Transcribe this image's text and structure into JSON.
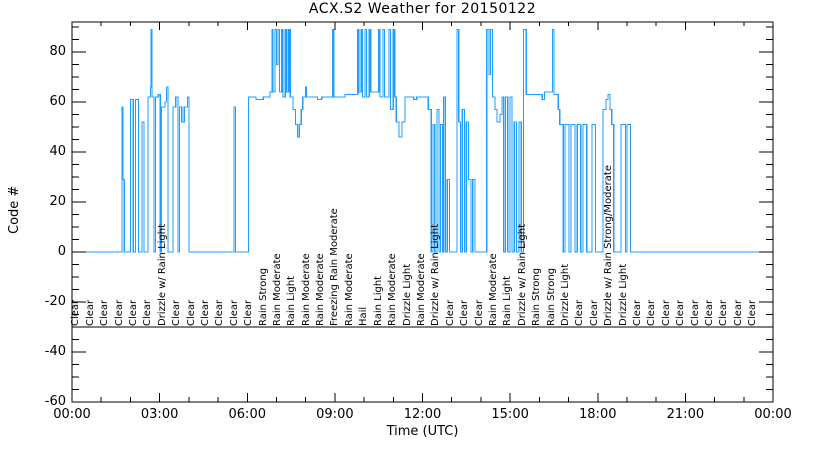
{
  "window": {
    "title": "ACX.S2 Weather for 20150122"
  },
  "chart_data": {
    "type": "line",
    "title": "ACX.S2 Weather for 20150122",
    "xlabel": "Time (UTC)",
    "ylabel": "Code #",
    "grid": false,
    "legend": "none",
    "background_color": "#FFFFFF",
    "axis_color": "#000000",
    "line_color": "#1E9FFF",
    "x_axis": {
      "unit": "hours UTC",
      "range_hours": [
        0,
        24
      ],
      "major_tick_hours": [
        0,
        3,
        6,
        9,
        12,
        15,
        18,
        21,
        24
      ],
      "major_tick_labels": [
        "00:00",
        "03:00",
        "06:00",
        "09:00",
        "12:00",
        "15:00",
        "18:00",
        "21:00",
        "00:00"
      ],
      "minor_tick_interval_hours": 1
    },
    "y_axis": {
      "range": [
        -60,
        92
      ],
      "major_ticks": [
        -60,
        -40,
        -20,
        0,
        20,
        40,
        60,
        80
      ],
      "major_tick_labels": [
        "-60",
        "-40",
        "-20",
        "0",
        "20",
        "40",
        "60",
        "80"
      ],
      "minor_tick_interval": 5
    },
    "condition_label_baseline_code": -30,
    "series": [
      {
        "name": "weather code",
        "style": "step",
        "color": "#1E9FFF",
        "points_hours_code": [
          [
            0,
            0
          ],
          [
            1.71,
            58
          ],
          [
            1.74,
            29
          ],
          [
            1.79,
            0
          ],
          [
            2.0,
            61
          ],
          [
            2.1,
            0
          ],
          [
            2.17,
            61
          ],
          [
            2.28,
            0
          ],
          [
            2.4,
            52
          ],
          [
            2.47,
            0
          ],
          [
            2.6,
            62
          ],
          [
            2.69,
            66
          ],
          [
            2.71,
            89
          ],
          [
            2.74,
            62
          ],
          [
            2.81,
            0
          ],
          [
            2.86,
            62
          ],
          [
            2.95,
            63
          ],
          [
            3.02,
            0
          ],
          [
            3.06,
            58
          ],
          [
            3.18,
            60
          ],
          [
            3.24,
            66
          ],
          [
            3.29,
            0
          ],
          [
            3.46,
            58
          ],
          [
            3.55,
            62
          ],
          [
            3.63,
            0
          ],
          [
            3.68,
            58
          ],
          [
            3.76,
            52
          ],
          [
            3.84,
            58
          ],
          [
            3.95,
            62
          ],
          [
            4.01,
            0
          ],
          [
            5.55,
            58
          ],
          [
            5.6,
            0
          ],
          [
            6.04,
            62
          ],
          [
            6.3,
            61
          ],
          [
            6.55,
            62
          ],
          [
            6.78,
            64
          ],
          [
            6.85,
            89
          ],
          [
            6.88,
            64
          ],
          [
            6.95,
            89
          ],
          [
            7.0,
            75
          ],
          [
            7.05,
            89
          ],
          [
            7.1,
            64
          ],
          [
            7.18,
            89
          ],
          [
            7.22,
            62
          ],
          [
            7.3,
            89
          ],
          [
            7.35,
            64
          ],
          [
            7.42,
            89
          ],
          [
            7.47,
            62
          ],
          [
            7.57,
            57
          ],
          [
            7.65,
            51
          ],
          [
            7.72,
            46
          ],
          [
            7.78,
            51
          ],
          [
            7.85,
            57
          ],
          [
            7.9,
            62
          ],
          [
            7.99,
            66
          ],
          [
            8.03,
            62
          ],
          [
            8.4,
            61
          ],
          [
            8.55,
            62
          ],
          [
            8.93,
            89
          ],
          [
            8.97,
            62
          ],
          [
            9.35,
            63
          ],
          [
            9.78,
            89
          ],
          [
            9.83,
            64
          ],
          [
            9.9,
            89
          ],
          [
            9.95,
            62
          ],
          [
            10.03,
            89
          ],
          [
            10.08,
            62
          ],
          [
            10.18,
            89
          ],
          [
            10.23,
            64
          ],
          [
            10.5,
            89
          ],
          [
            10.55,
            62
          ],
          [
            10.65,
            89
          ],
          [
            10.7,
            62
          ],
          [
            10.85,
            89
          ],
          [
            10.9,
            57
          ],
          [
            11.0,
            89
          ],
          [
            11.05,
            62
          ],
          [
            11.1,
            52
          ],
          [
            11.2,
            46
          ],
          [
            11.3,
            52
          ],
          [
            11.4,
            62
          ],
          [
            11.7,
            61
          ],
          [
            11.8,
            62
          ],
          [
            12.2,
            57
          ],
          [
            12.3,
            0
          ],
          [
            12.36,
            51
          ],
          [
            12.42,
            0
          ],
          [
            12.5,
            57
          ],
          [
            12.56,
            0
          ],
          [
            12.62,
            51
          ],
          [
            12.68,
            0
          ],
          [
            12.72,
            62
          ],
          [
            12.78,
            0
          ],
          [
            12.85,
            29
          ],
          [
            12.92,
            0
          ],
          [
            13.18,
            89
          ],
          [
            13.24,
            52
          ],
          [
            13.3,
            0
          ],
          [
            13.36,
            57
          ],
          [
            13.44,
            0
          ],
          [
            13.5,
            52
          ],
          [
            13.58,
            29
          ],
          [
            13.66,
            0
          ],
          [
            13.72,
            29
          ],
          [
            13.8,
            0
          ],
          [
            14.2,
            89
          ],
          [
            14.28,
            71
          ],
          [
            14.33,
            89
          ],
          [
            14.4,
            62
          ],
          [
            14.48,
            57
          ],
          [
            14.55,
            52
          ],
          [
            14.65,
            55
          ],
          [
            14.72,
            62
          ],
          [
            14.78,
            0
          ],
          [
            14.84,
            62
          ],
          [
            14.92,
            0
          ],
          [
            15.0,
            62
          ],
          [
            15.06,
            0
          ],
          [
            15.14,
            52
          ],
          [
            15.22,
            0
          ],
          [
            15.3,
            52
          ],
          [
            15.38,
            0
          ],
          [
            15.46,
            89
          ],
          [
            15.55,
            63
          ],
          [
            16.1,
            61
          ],
          [
            16.18,
            64
          ],
          [
            16.45,
            89
          ],
          [
            16.5,
            63
          ],
          [
            16.65,
            57
          ],
          [
            16.7,
            51
          ],
          [
            16.82,
            0
          ],
          [
            16.88,
            51
          ],
          [
            17.02,
            0
          ],
          [
            17.08,
            51
          ],
          [
            17.22,
            0
          ],
          [
            17.3,
            51
          ],
          [
            17.42,
            0
          ],
          [
            17.5,
            51
          ],
          [
            17.62,
            0
          ],
          [
            17.8,
            51
          ],
          [
            17.92,
            0
          ],
          [
            18.18,
            57
          ],
          [
            18.28,
            61
          ],
          [
            18.35,
            63
          ],
          [
            18.42,
            57
          ],
          [
            18.48,
            51
          ],
          [
            18.55,
            0
          ],
          [
            18.8,
            51
          ],
          [
            18.95,
            0
          ],
          [
            19.0,
            51
          ],
          [
            19.12,
            0
          ],
          [
            23.9,
            0
          ]
        ]
      }
    ],
    "condition_labels": [
      [
        0.13,
        "Clear"
      ],
      [
        0.62,
        "Clear"
      ],
      [
        1.12,
        "Clear"
      ],
      [
        1.61,
        "Clear"
      ],
      [
        2.1,
        "Clear"
      ],
      [
        2.6,
        "Clear"
      ],
      [
        3.09,
        "Drizzle w/ Rain Light"
      ],
      [
        3.58,
        "Clear"
      ],
      [
        4.08,
        "Clear"
      ],
      [
        4.57,
        "Clear"
      ],
      [
        5.06,
        "Clear"
      ],
      [
        5.55,
        "Clear"
      ],
      [
        6.05,
        "Clear"
      ],
      [
        6.54,
        "Rain Strong"
      ],
      [
        7.03,
        "Rain Moderate"
      ],
      [
        7.53,
        "Rain Light"
      ],
      [
        8.02,
        "Rain Moderate"
      ],
      [
        8.51,
        "Rain Moderate"
      ],
      [
        9.0,
        "Freezing Rain Moderate"
      ],
      [
        9.5,
        "Rain Moderate"
      ],
      [
        9.99,
        "Hail"
      ],
      [
        10.48,
        "Rain Light"
      ],
      [
        10.98,
        "Rain Moderate"
      ],
      [
        11.47,
        "Drizzle Light"
      ],
      [
        11.96,
        "Rain Moderate"
      ],
      [
        12.46,
        "Drizzle w/ Rain Light"
      ],
      [
        12.95,
        "Clear"
      ],
      [
        13.44,
        "Clear"
      ],
      [
        13.94,
        "Clear"
      ],
      [
        14.43,
        "Rain Moderate"
      ],
      [
        14.92,
        "Rain Light"
      ],
      [
        15.41,
        "Drizzle w/ Rain Light"
      ],
      [
        15.91,
        "Rain Strong"
      ],
      [
        16.4,
        "Rain Strong"
      ],
      [
        16.89,
        "Drizzle Light"
      ],
      [
        17.39,
        "Clear"
      ],
      [
        17.88,
        "Clear"
      ],
      [
        18.37,
        "Drizzle w/ Rain Strong/Moderate"
      ],
      [
        18.87,
        "Drizzle Light"
      ],
      [
        19.36,
        "Clear"
      ],
      [
        19.85,
        "Clear"
      ],
      [
        20.35,
        "Clear"
      ],
      [
        20.84,
        "Clear"
      ],
      [
        21.33,
        "Clear"
      ],
      [
        21.83,
        "Clear"
      ],
      [
        22.32,
        "Clear"
      ],
      [
        22.81,
        "Clear"
      ],
      [
        23.3,
        "Clear"
      ]
    ]
  }
}
